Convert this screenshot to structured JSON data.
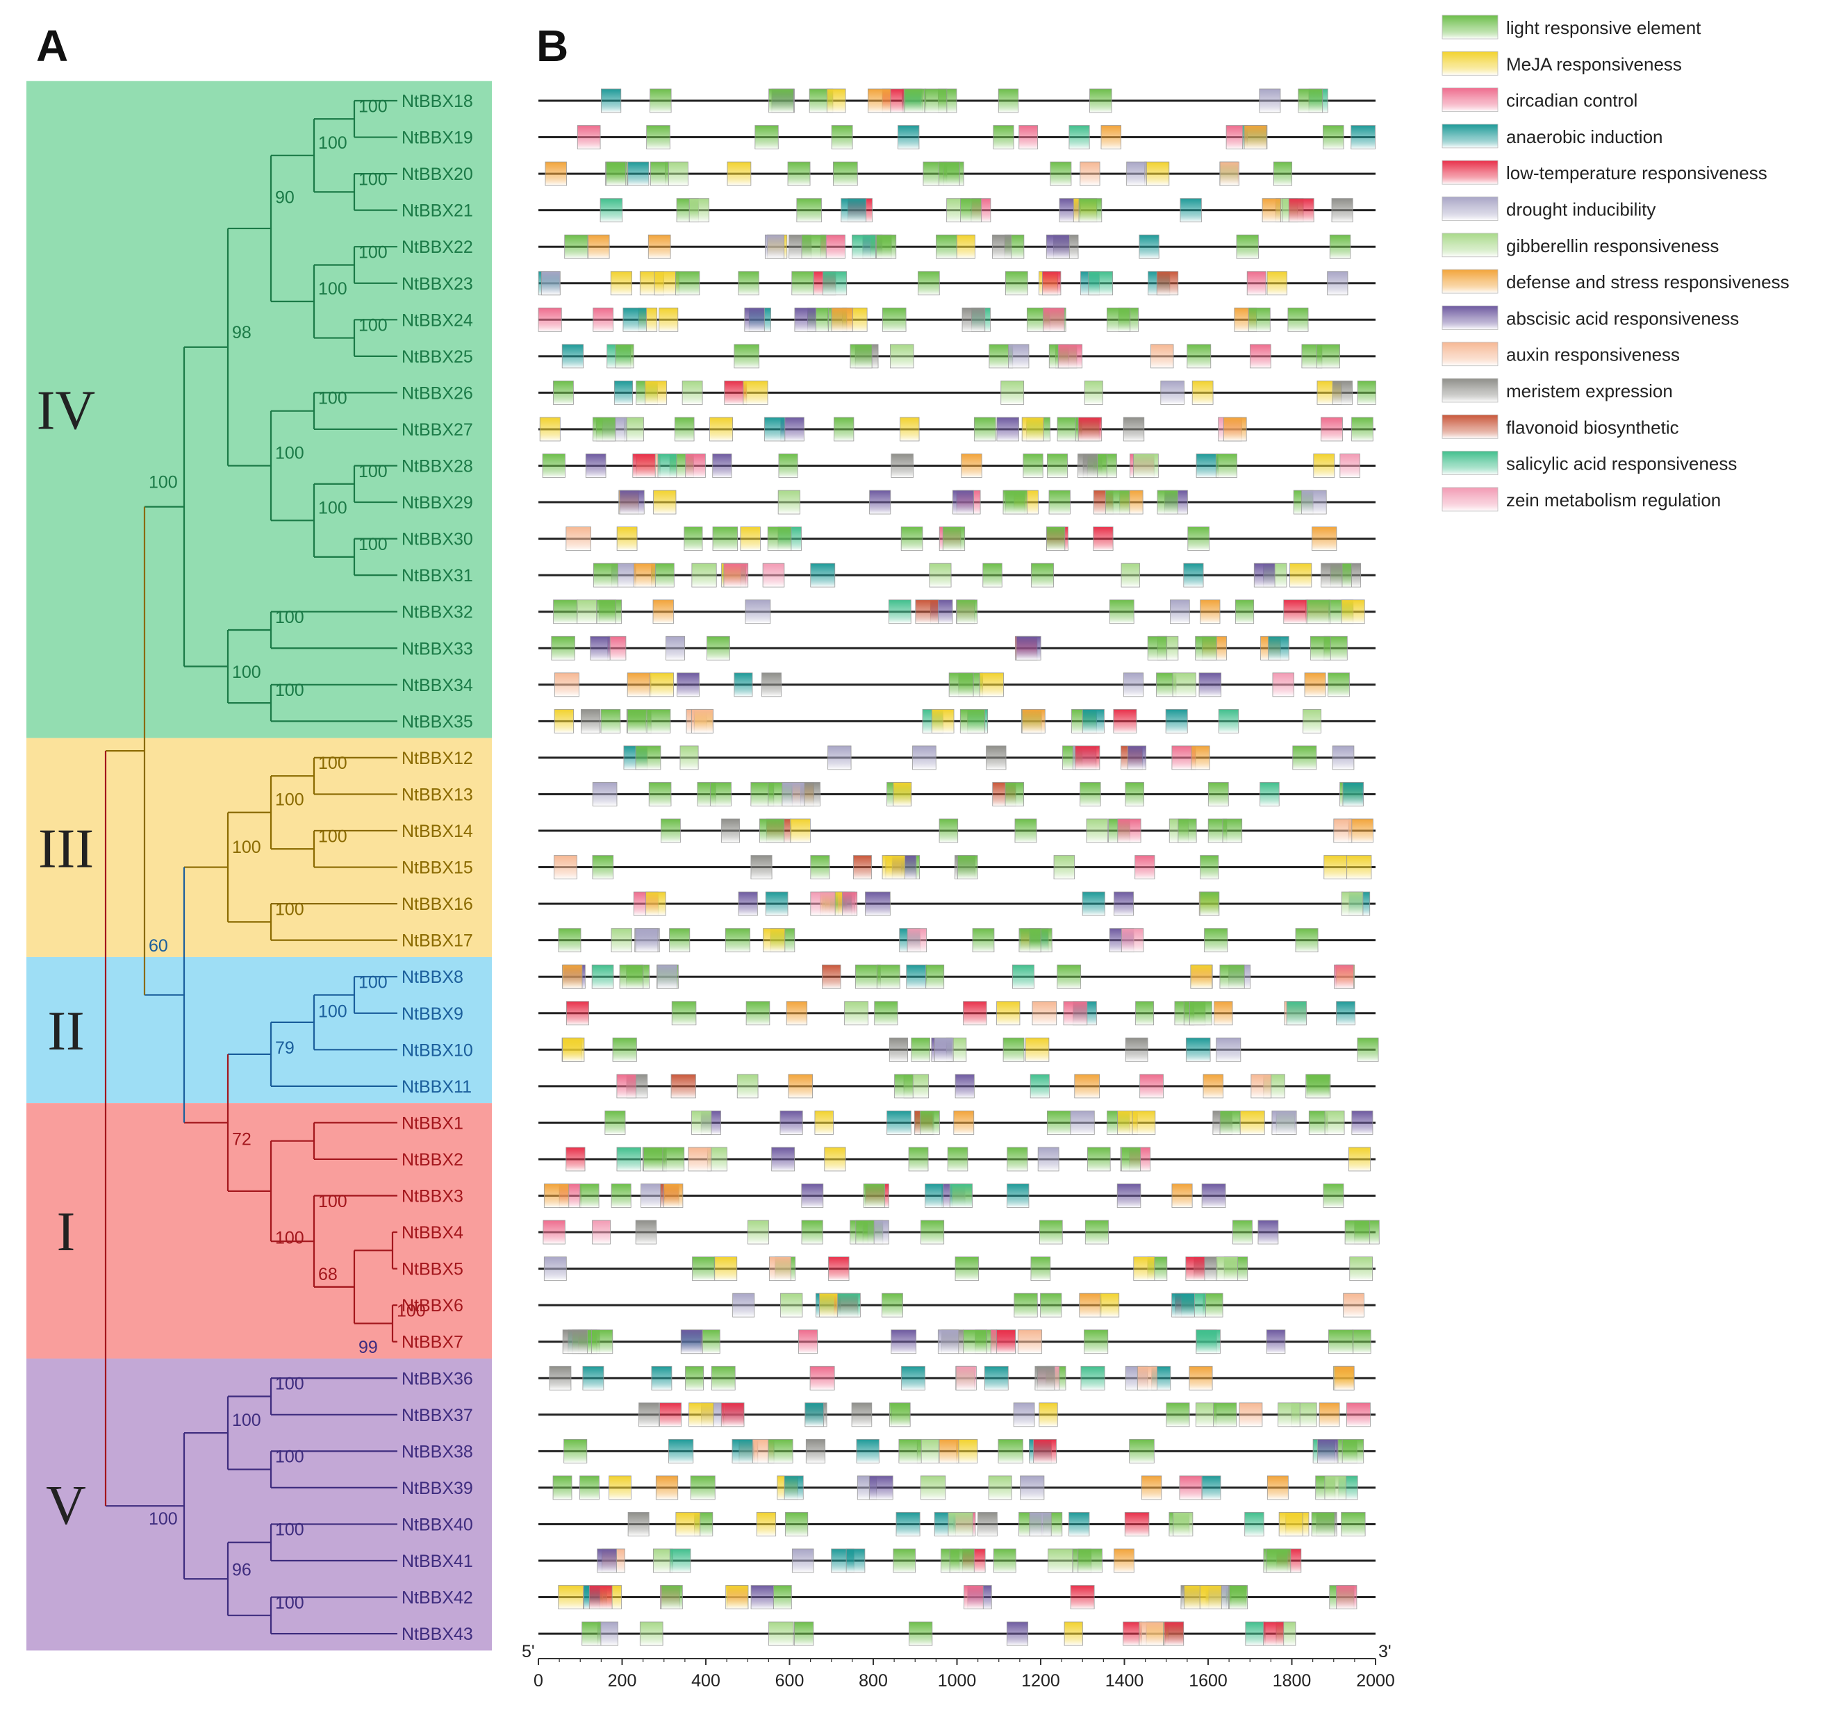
{
  "panels": {
    "a": "A",
    "b": "B"
  },
  "clades": [
    {
      "label": "IV",
      "color": "#93DDB1",
      "text": "#1B7A47",
      "genes": [
        "NtBBX18",
        "NtBBX19",
        "NtBBX20",
        "NtBBX21",
        "NtBBX22",
        "NtBBX23",
        "NtBBX24",
        "NtBBX25",
        "NtBBX26",
        "NtBBX27",
        "NtBBX28",
        "NtBBX29",
        "NtBBX30",
        "NtBBX31",
        "NtBBX32",
        "NtBBX33",
        "NtBBX34",
        "NtBBX35"
      ]
    },
    {
      "label": "III",
      "color": "#FBE29B",
      "text": "#8A6A00",
      "genes": [
        "NtBBX12",
        "NtBBX13",
        "NtBBX14",
        "NtBBX15",
        "NtBBX16",
        "NtBBX17"
      ]
    },
    {
      "label": "II",
      "color": "#9EDEF5",
      "text": "#1B5F9C",
      "genes": [
        "NtBBX8",
        "NtBBX9",
        "NtBBX10",
        "NtBBX11"
      ]
    },
    {
      "label": "I",
      "color": "#F99E9C",
      "text": "#A3161C",
      "genes": [
        "NtBBX1",
        "NtBBX2",
        "NtBBX3",
        "NtBBX4",
        "NtBBX5",
        "NtBBX6",
        "NtBBX7"
      ]
    },
    {
      "label": "V",
      "color": "#C3A8D6",
      "text": "#3E2C7E",
      "genes": [
        "NtBBX36",
        "NtBBX37",
        "NtBBX38",
        "NtBBX39",
        "NtBBX40",
        "NtBBX41",
        "NtBBX42",
        "NtBBX43"
      ]
    }
  ],
  "bootstrap": [
    {
      "v": "100",
      "row": 0.5,
      "col": 7
    },
    {
      "v": "100",
      "row": 1.5,
      "col": 6
    },
    {
      "v": "100",
      "row": 2.5,
      "col": 7
    },
    {
      "v": "90",
      "row": 3.0,
      "col": 5
    },
    {
      "v": "100",
      "row": 4.5,
      "col": 7
    },
    {
      "v": "100",
      "row": 5.5,
      "col": 6
    },
    {
      "v": "100",
      "row": 6.5,
      "col": 7
    },
    {
      "v": "98",
      "row": 6.7,
      "col": 4
    },
    {
      "v": "100",
      "row": 8.5,
      "col": 6
    },
    {
      "v": "100",
      "row": 10.0,
      "col": 5
    },
    {
      "v": "100",
      "row": 10.5,
      "col": 7
    },
    {
      "v": "100",
      "row": 11.5,
      "col": 6
    },
    {
      "v": "100",
      "row": 12.5,
      "col": 7
    },
    {
      "v": "100",
      "row": 10.8,
      "col": 2
    },
    {
      "v": "100",
      "row": 14.5,
      "col": 5
    },
    {
      "v": "100",
      "row": 16.0,
      "col": 4
    },
    {
      "v": "100",
      "row": 16.5,
      "col": 5
    },
    {
      "v": "100",
      "row": 18.5,
      "col": 6
    },
    {
      "v": "100",
      "row": 19.5,
      "col": 5
    },
    {
      "v": "100",
      "row": 20.5,
      "col": 6
    },
    {
      "v": "100",
      "row": 20.8,
      "col": 4
    },
    {
      "v": "100",
      "row": 22.5,
      "col": 5
    },
    {
      "v": "60",
      "row": 23.5,
      "col": 2
    },
    {
      "v": "100",
      "row": 24.5,
      "col": 7
    },
    {
      "v": "100",
      "row": 25.3,
      "col": 6
    },
    {
      "v": "79",
      "row": 26.3,
      "col": 5
    },
    {
      "v": "72",
      "row": 28.8,
      "col": 4
    },
    {
      "v": "100",
      "row": 30.5,
      "col": 6
    },
    {
      "v": "100",
      "row": 31.5,
      "col": 5
    },
    {
      "v": "68",
      "row": 32.5,
      "col": 6
    },
    {
      "v": "100",
      "row": 33.5,
      "col": 8
    },
    {
      "v": "99",
      "row": 34.5,
      "col": 7
    },
    {
      "v": "100",
      "row": 35.5,
      "col": 5
    },
    {
      "v": "100",
      "row": 36.5,
      "col": 4
    },
    {
      "v": "100",
      "row": 37.5,
      "col": 5
    },
    {
      "v": "100",
      "row": 39.5,
      "col": 5
    },
    {
      "v": "96",
      "row": 40.6,
      "col": 4
    },
    {
      "v": "100",
      "row": 41.5,
      "col": 5
    },
    {
      "v": "100",
      "row": 39.2,
      "col": 2
    }
  ],
  "axis": {
    "ticks": [
      "0",
      "200",
      "400",
      "600",
      "800",
      "1000",
      "1200",
      "1400",
      "1600",
      "1800",
      "2000"
    ],
    "end5": "5'",
    "end3": "3'",
    "max": 2000
  },
  "legend": [
    {
      "name": "light responsive element",
      "color": "#6DBE4A"
    },
    {
      "name": "MeJA responsiveness",
      "color": "#F2D22E"
    },
    {
      "name": "circadian control",
      "color": "#EE6D8E"
    },
    {
      "name": "anaerobic induction",
      "color": "#1E9A98"
    },
    {
      "name": "low-temperature responsiveness",
      "color": "#E8304A"
    },
    {
      "name": "drought inducibility",
      "color": "#A9A6C6"
    },
    {
      "name": "gibberellin responsiveness",
      "color": "#A9D98A"
    },
    {
      "name": "defense and stress responsiveness",
      "color": "#F2A43A"
    },
    {
      "name": "abscisic acid responsiveness",
      "color": "#6E5AA0"
    },
    {
      "name": "auxin responsiveness",
      "color": "#F6B894"
    },
    {
      "name": "meristem expression",
      "color": "#8F8F8A"
    },
    {
      "name": "flavonoid biosynthetic",
      "color": "#C9573A"
    },
    {
      "name": "salicylic acid responsiveness",
      "color": "#41BF8D"
    },
    {
      "name": "zein metabolism regulation",
      "color": "#F29BB4"
    }
  ]
}
